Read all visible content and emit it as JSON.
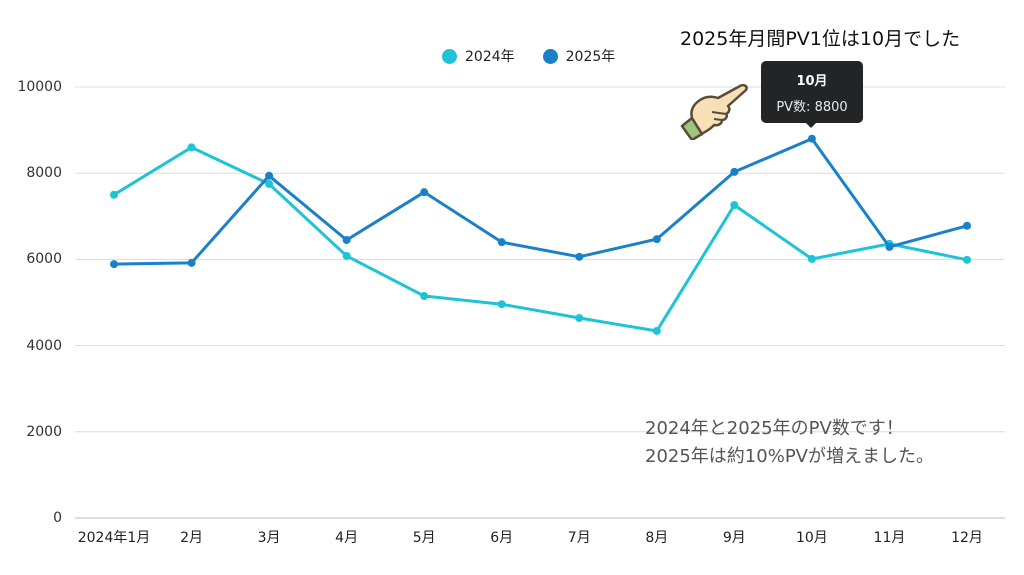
{
  "headline": "2025年月間PV1位は10月でした",
  "note": {
    "line1": "2024年と2025年のPV数です！",
    "line2": "2025年は約10%PVが増えました。"
  },
  "legend": [
    {
      "label": "2024年",
      "color": "#1ec3d6"
    },
    {
      "label": "2025年",
      "color": "#1a80c8"
    }
  ],
  "tooltip": {
    "title": "10月",
    "body": "PV数: 8800"
  },
  "icons": {
    "pointer": "pointing-hand-icon"
  },
  "y_axis": {
    "ticks": [
      "10000",
      "8000",
      "6000",
      "4000",
      "2000",
      "0"
    ]
  },
  "x_axis": {
    "ticks": [
      "2024年1月",
      "2月",
      "3月",
      "4月",
      "5月",
      "6月",
      "7月",
      "8月",
      "9月",
      "10月",
      "11月",
      "12月"
    ]
  },
  "chart_data": {
    "type": "line",
    "title": "2025年月間PV1位は10月でした",
    "xlabel": "",
    "ylabel": "",
    "categories": [
      "2024年1月",
      "2月",
      "3月",
      "4月",
      "5月",
      "6月",
      "7月",
      "8月",
      "9月",
      "10月",
      "11月",
      "12月"
    ],
    "series": [
      {
        "name": "2024年",
        "color": "#1ec3d6",
        "values": [
          7500,
          8600,
          7750,
          6080,
          5150,
          4960,
          4640,
          4340,
          7260,
          6010,
          6360,
          5990
        ]
      },
      {
        "name": "2025年",
        "color": "#1a80c8",
        "values": [
          5890,
          5920,
          7940,
          6450,
          7560,
          6400,
          6060,
          6470,
          8030,
          8800,
          6290,
          6780
        ]
      }
    ],
    "ylim": [
      0,
      10000
    ],
    "yticks": [
      0,
      2000,
      4000,
      6000,
      8000,
      10000
    ],
    "grid": true,
    "legend_position": "top",
    "annotations": [
      {
        "text": "10月 PV数: 8800",
        "type": "tooltip",
        "x": "10月",
        "series": "2025年"
      },
      {
        "text": "2024年と2025年のPV数です！ 2025年は約10%PVが増えました。",
        "type": "note"
      }
    ]
  }
}
